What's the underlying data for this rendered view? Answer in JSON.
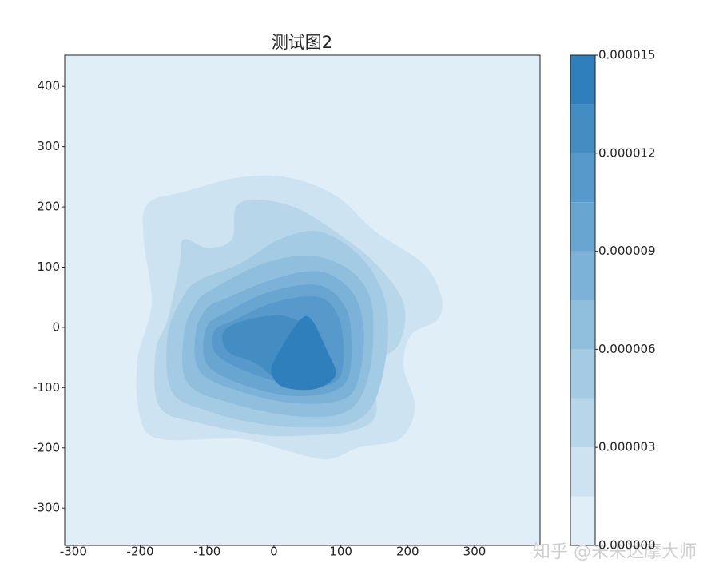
{
  "chart_data": {
    "type": "contourf",
    "title": "测试图2",
    "xlim": [
      -313,
      398
    ],
    "ylim": [
      -362,
      452
    ],
    "xticks": [
      -300,
      -200,
      -100,
      0,
      100,
      200,
      300
    ],
    "yticks": [
      -300,
      -200,
      -100,
      0,
      100,
      200,
      300,
      400
    ],
    "levels": [
      0,
      1.5e-06,
      3e-06,
      4.5e-06,
      6e-06,
      7.5e-06,
      9e-06,
      1.05e-05,
      1.2e-05,
      1.35e-05,
      1.5e-05
    ],
    "colors": [
      "#e0eef7",
      "#cde3f1",
      "#b8d6ea",
      "#a4cbe4",
      "#90bfdd",
      "#7cb2d7",
      "#68a6d1",
      "#5699ca",
      "#448dc3",
      "#2f7fbc"
    ],
    "colorbar_ticks": [
      {
        "value": 0,
        "label": "0.000000"
      },
      3e-06,
      6e-06,
      9e-06,
      1.2e-05,
      1.5e-05
    ],
    "contours": [
      {
        "x": [
          -189,
          -135,
          -51,
          20,
          92,
          152,
          223,
          250,
          245,
          205,
          194,
          211,
          188,
          128,
          80,
          20,
          -51,
          -171,
          -201,
          -204,
          -183,
          -195
        ],
        "y": [
          205,
          225,
          249,
          249,
          219,
          159,
          106,
          53,
          13,
          -13,
          -66,
          -132,
          -185,
          -199,
          -219,
          -205,
          -185,
          -185,
          -146,
          -53,
          40,
          146
        ]
      },
      {
        "x": [
          -135,
          -99,
          -63,
          -57,
          -27,
          32,
          92,
          152,
          194,
          188,
          152,
          152,
          116,
          56,
          -16,
          -111,
          -171,
          -177,
          -159,
          -141
        ],
        "y": [
          146,
          132,
          146,
          199,
          212,
          199,
          159,
          106,
          40,
          -26,
          -66,
          -146,
          -172,
          -179,
          -179,
          -159,
          -132,
          -40,
          13,
          106
        ]
      },
      {
        "x": [
          -111,
          -51,
          8,
          68,
          128,
          164,
          170,
          152,
          116,
          44,
          -27,
          -99,
          -153,
          -159,
          -135
        ],
        "y": [
          79,
          106,
          146,
          159,
          119,
          53,
          -26,
          -119,
          -159,
          -166,
          -159,
          -139,
          -106,
          -13,
          53
        ]
      },
      {
        "x": [
          -88,
          -16,
          56,
          116,
          146,
          146,
          128,
          92,
          20,
          -63,
          -129,
          -135,
          -117
        ],
        "y": [
          66,
          106,
          119,
          93,
          40,
          -53,
          -119,
          -146,
          -146,
          -126,
          -93,
          -13,
          40
        ]
      },
      {
        "x": [
          -76,
          -4,
          68,
          116,
          134,
          128,
          104,
          32,
          -51,
          -111,
          -117,
          -99
        ],
        "y": [
          46,
          79,
          93,
          60,
          0,
          -79,
          -119,
          -126,
          -106,
          -73,
          -7,
          33
        ]
      },
      {
        "x": [
          -69,
          -4,
          68,
          107,
          116,
          110,
          80,
          20,
          -51,
          -101,
          -101
        ],
        "y": [
          26,
          60,
          70,
          33,
          -26,
          -86,
          -109,
          -113,
          -93,
          -60,
          0
        ]
      },
      {
        "x": [
          -57,
          2,
          68,
          98,
          104,
          92,
          44,
          -27,
          -85,
          -90
        ],
        "y": [
          13,
          42,
          50,
          13,
          -53,
          -90,
          -99,
          -79,
          -46,
          -7
        ]
      },
      {
        "x": [
          -75,
          -39,
          8,
          38,
          50,
          80,
          86,
          56,
          14,
          -27,
          -69
        ],
        "y": [
          -7,
          13,
          20,
          11,
          13,
          -40,
          -79,
          -99,
          -93,
          -60,
          -40
        ]
      },
      {
        "x": [
          38,
          56,
          80,
          92,
          62,
          14,
          -4,
          8
        ],
        "y": [
          11,
          13,
          -40,
          -79,
          -102,
          -99,
          -73,
          -40
        ]
      }
    ],
    "watermark": "知乎 @未来达摩大师"
  }
}
